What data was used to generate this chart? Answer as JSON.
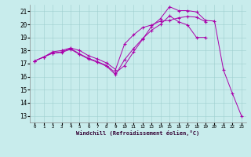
{
  "xlabel": "Windchill (Refroidissement éolien,°C)",
  "bg_color": "#c8ecec",
  "line_color": "#aa00aa",
  "xlim": [
    -0.5,
    23.5
  ],
  "ylim": [
    12.5,
    21.5
  ],
  "xticks": [
    0,
    1,
    2,
    3,
    4,
    5,
    6,
    7,
    8,
    9,
    10,
    11,
    12,
    13,
    14,
    15,
    16,
    17,
    18,
    19,
    20,
    21,
    22,
    23
  ],
  "yticks": [
    13,
    14,
    15,
    16,
    17,
    18,
    19,
    20,
    21
  ],
  "line1_x": [
    0,
    1,
    2,
    3,
    4,
    5,
    6,
    7,
    8,
    9,
    10,
    11,
    12,
    13,
    14,
    15,
    16,
    17,
    18,
    19,
    20,
    21,
    22,
    23
  ],
  "line1_y": [
    17.2,
    17.5,
    17.8,
    17.9,
    18.15,
    17.75,
    17.4,
    17.15,
    16.85,
    16.3,
    16.85,
    17.9,
    18.85,
    19.85,
    20.45,
    21.35,
    21.05,
    21.05,
    20.95,
    20.3,
    20.25,
    16.5,
    14.7,
    13.0
  ],
  "line2_x": [
    0,
    1,
    2,
    3,
    4,
    5,
    6,
    7,
    8,
    9,
    10,
    11,
    12,
    13,
    14,
    15,
    16,
    17,
    18,
    19
  ],
  "line2_y": [
    17.2,
    17.5,
    17.8,
    17.85,
    18.1,
    17.7,
    17.35,
    17.1,
    16.8,
    16.15,
    17.3,
    18.15,
    18.9,
    19.55,
    20.0,
    20.65,
    20.2,
    19.95,
    19.0,
    19.0
  ],
  "line3_x": [
    0,
    1,
    2,
    3,
    4,
    5,
    6,
    7,
    8,
    9,
    10,
    11,
    12,
    13,
    14,
    15,
    16,
    17,
    18,
    19
  ],
  "line3_y": [
    17.2,
    17.5,
    17.9,
    18.0,
    18.2,
    18.0,
    17.6,
    17.35,
    17.05,
    16.55,
    18.5,
    19.2,
    19.75,
    19.95,
    20.25,
    20.3,
    20.5,
    20.6,
    20.55,
    20.2
  ]
}
